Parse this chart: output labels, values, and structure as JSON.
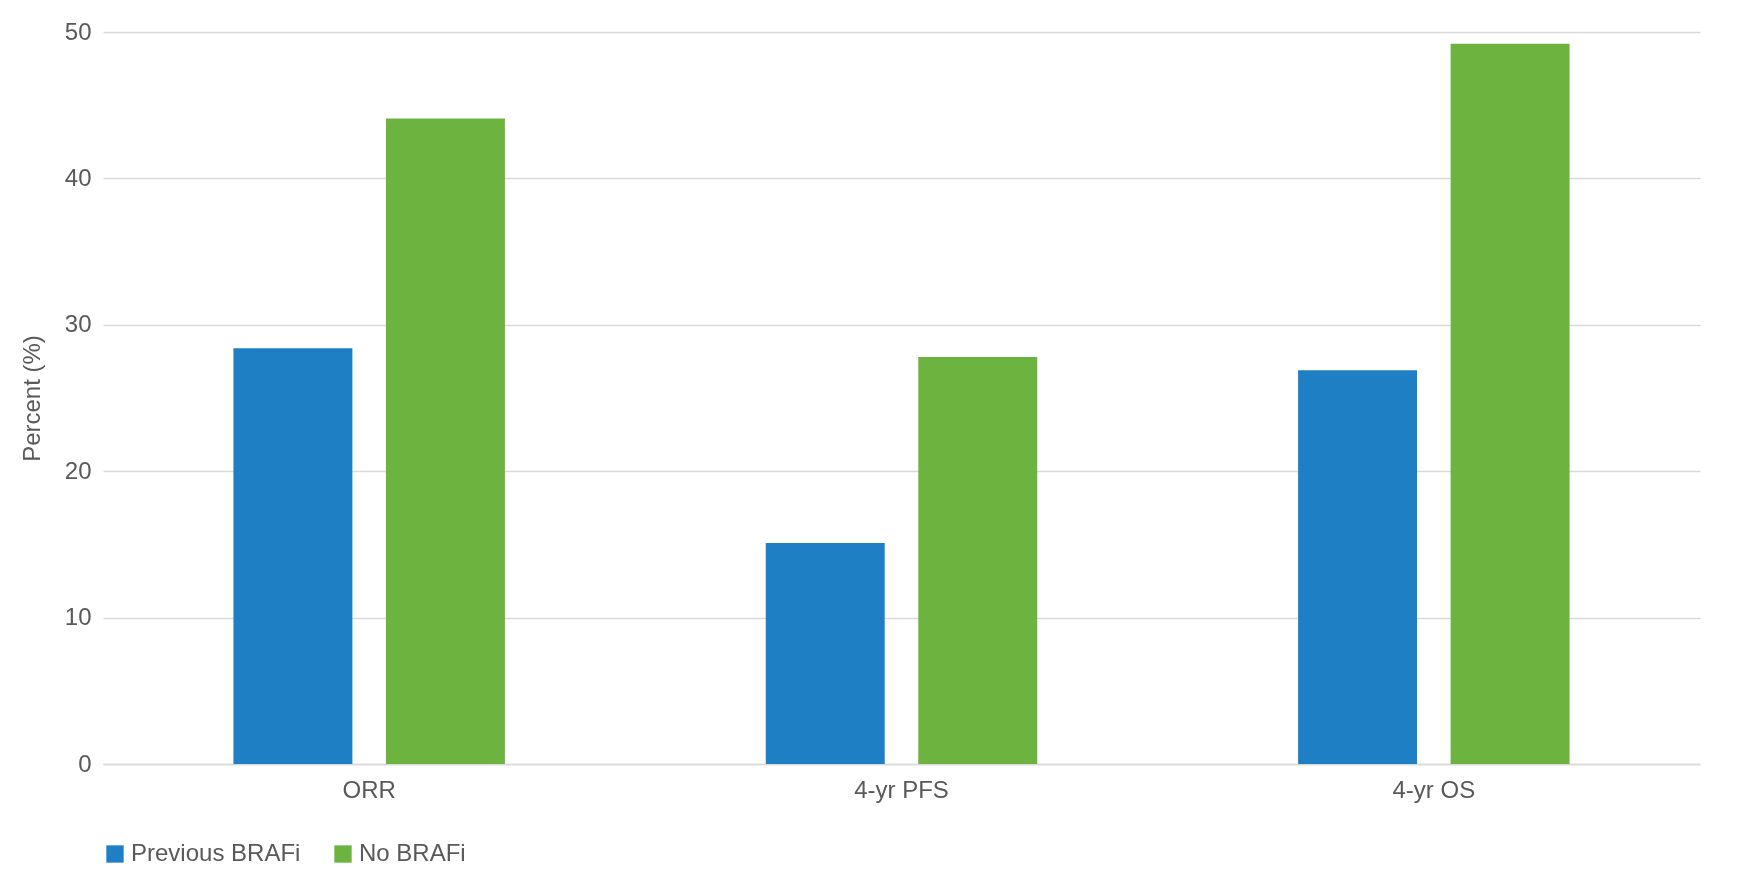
{
  "chart_data": {
    "type": "bar",
    "ylabel": "Percent (%)",
    "categories": [
      "ORR",
      "4-yr PFS",
      "4-yr OS"
    ],
    "series": [
      {
        "name": "Previous BRAFi",
        "color": "#1f7fc4",
        "values": [
          28.4,
          15.1,
          26.9
        ]
      },
      {
        "name": "No BRAFi",
        "color": "#6db33f",
        "values": [
          44.1,
          27.8,
          49.2
        ]
      }
    ],
    "ylim": [
      0,
      50
    ],
    "yticks": [
      0,
      10,
      20,
      30,
      40,
      50
    ],
    "grid": "y",
    "legend": "bottom"
  }
}
